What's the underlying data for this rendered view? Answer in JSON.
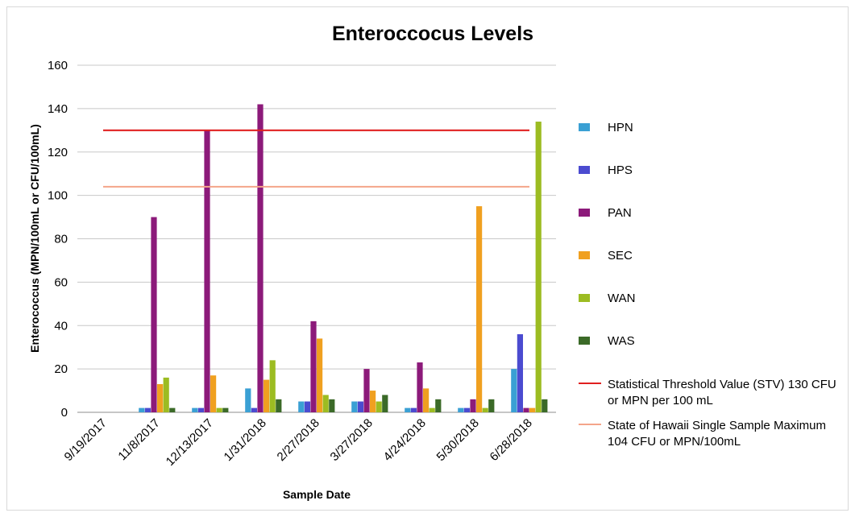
{
  "chart_data": {
    "type": "bar",
    "title": "Enteroccocus Levels",
    "xlabel": "Sample Date",
    "ylabel": "Enterococcus (MPN/100mL or CFU/100mL)",
    "ylim": [
      0,
      160
    ],
    "yticks": [
      0,
      20,
      40,
      60,
      80,
      100,
      120,
      140,
      160
    ],
    "grid": true,
    "legend_position": "right",
    "categories": [
      "9/19/2017",
      "11/8/2017",
      "12/13/2017",
      "1/31/2018",
      "2/27/2018",
      "3/27/2018",
      "4/24/2018",
      "5/30/2018",
      "6/28/2018"
    ],
    "series": [
      {
        "name": "HPN",
        "color": "#3aa0d4",
        "values": [
          0,
          2,
          2,
          11,
          5,
          5,
          2,
          2,
          20
        ]
      },
      {
        "name": "HPS",
        "color": "#4b4bd0",
        "values": [
          0,
          2,
          2,
          2,
          5,
          5,
          2,
          2,
          36
        ]
      },
      {
        "name": "PAN",
        "color": "#8c1a7a",
        "values": [
          0,
          90,
          130,
          142,
          42,
          20,
          23,
          6,
          2
        ]
      },
      {
        "name": "SEC",
        "color": "#f0a020",
        "values": [
          0,
          13,
          17,
          15,
          34,
          10,
          11,
          95,
          2
        ]
      },
      {
        "name": "WAN",
        "color": "#9cbc22",
        "values": [
          0,
          16,
          2,
          24,
          8,
          5,
          2,
          2,
          134
        ]
      },
      {
        "name": "WAS",
        "color": "#3b6a28",
        "values": [
          0,
          2,
          2,
          6,
          6,
          8,
          6,
          6,
          6
        ]
      }
    ],
    "reference_lines": [
      {
        "name": "Statistical Threshold Value (STV) 130 CFU or MPN per 100 mL",
        "name_lines": [
          "Statistical Threshold Value (STV) 130 CFU",
          "or MPN per 100 mL"
        ],
        "value": 130,
        "color": "#e02020"
      },
      {
        "name": "State of Hawaii Single Sample Maximum 104 CFU or MPN/100mL",
        "name_lines": [
          "State of Hawaii Single Sample Maximum",
          "104 CFU or MPN/100mL"
        ],
        "value": 104,
        "color": "#f4a58a"
      }
    ]
  }
}
